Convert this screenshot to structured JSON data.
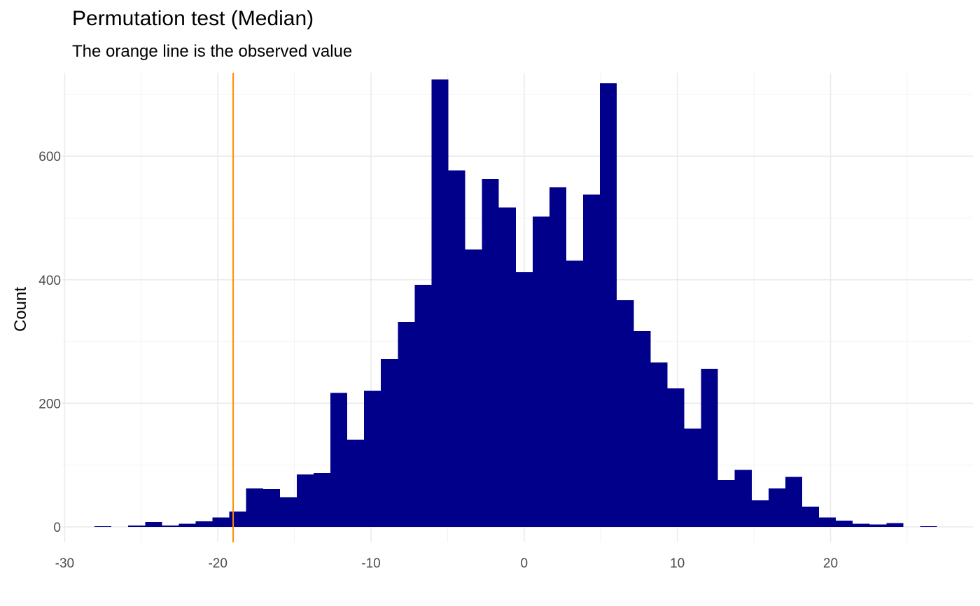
{
  "chart_data": {
    "type": "bar",
    "title": "Permutation test (Median)",
    "subtitle": "The orange line is the observed value",
    "xlabel": "",
    "ylabel": "Count",
    "xlim": [
      -30.2,
      29.3
    ],
    "ylim": [
      -25,
      735
    ],
    "x_ticks": [
      -30,
      -20,
      -10,
      0,
      10,
      20
    ],
    "x_tick_labels": [
      "-30",
      "-20",
      "-10",
      "0",
      "10",
      "20"
    ],
    "y_ticks": [
      0,
      200,
      400,
      600
    ],
    "y_tick_labels": [
      "0",
      "200",
      "400",
      "600"
    ],
    "grid": true,
    "bin_width": 1.1,
    "bar_color": "#00008B",
    "observed_value": -19,
    "observed_line_color": "#FF8C00",
    "bins": [
      {
        "start": -28.05,
        "count": 1
      },
      {
        "start": -25.85,
        "count": 2
      },
      {
        "start": -24.75,
        "count": 8
      },
      {
        "start": -23.65,
        "count": 2
      },
      {
        "start": -22.55,
        "count": 5
      },
      {
        "start": -21.45,
        "count": 9
      },
      {
        "start": -20.35,
        "count": 15
      },
      {
        "start": -19.25,
        "count": 25
      },
      {
        "start": -18.15,
        "count": 62
      },
      {
        "start": -17.05,
        "count": 61
      },
      {
        "start": -15.95,
        "count": 48
      },
      {
        "start": -14.85,
        "count": 85
      },
      {
        "start": -13.75,
        "count": 87
      },
      {
        "start": -12.65,
        "count": 217
      },
      {
        "start": -11.55,
        "count": 141
      },
      {
        "start": -10.45,
        "count": 220
      },
      {
        "start": -9.35,
        "count": 272
      },
      {
        "start": -8.25,
        "count": 332
      },
      {
        "start": -7.15,
        "count": 392
      },
      {
        "start": -6.05,
        "count": 724
      },
      {
        "start": -4.95,
        "count": 577
      },
      {
        "start": -3.85,
        "count": 449
      },
      {
        "start": -2.75,
        "count": 563
      },
      {
        "start": -1.65,
        "count": 517
      },
      {
        "start": -0.55,
        "count": 412
      },
      {
        "start": 0.55,
        "count": 502
      },
      {
        "start": 1.65,
        "count": 550
      },
      {
        "start": 2.75,
        "count": 431
      },
      {
        "start": 3.85,
        "count": 538
      },
      {
        "start": 4.95,
        "count": 718
      },
      {
        "start": 6.05,
        "count": 367
      },
      {
        "start": 7.15,
        "count": 317
      },
      {
        "start": 8.25,
        "count": 266
      },
      {
        "start": 9.35,
        "count": 224
      },
      {
        "start": 10.45,
        "count": 159
      },
      {
        "start": 11.55,
        "count": 256
      },
      {
        "start": 12.65,
        "count": 76
      },
      {
        "start": 13.75,
        "count": 92
      },
      {
        "start": 14.85,
        "count": 43
      },
      {
        "start": 15.95,
        "count": 62
      },
      {
        "start": 17.05,
        "count": 81
      },
      {
        "start": 18.15,
        "count": 33
      },
      {
        "start": 19.25,
        "count": 15
      },
      {
        "start": 20.35,
        "count": 10
      },
      {
        "start": 21.45,
        "count": 5
      },
      {
        "start": 22.55,
        "count": 4
      },
      {
        "start": 23.65,
        "count": 6
      },
      {
        "start": 25.85,
        "count": 1
      }
    ]
  }
}
